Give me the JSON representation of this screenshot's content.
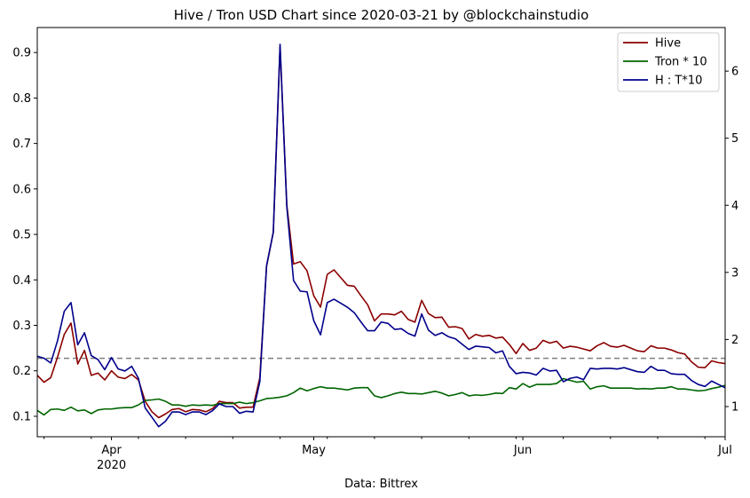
{
  "chart_data": {
    "type": "line",
    "title": "Hive / Tron USD Chart since 2020-03-21 by @blockchainstudio",
    "xlabel": "Data: Bittrex",
    "x_start": "2020-03-21",
    "x_end": "2020-07-01",
    "x_ticks": [
      {
        "date": "2020-04-01",
        "label": "Apr",
        "sublabel": "2020"
      },
      {
        "date": "2020-05-01",
        "label": "May",
        "sublabel": ""
      },
      {
        "date": "2020-06-01",
        "label": "Jun",
        "sublabel": ""
      },
      {
        "date": "2020-07-01",
        "label": "Jul",
        "sublabel": ""
      }
    ],
    "ylim_left": [
      0.055,
      0.955
    ],
    "yticks_left": [
      "0.1",
      "0.2",
      "0.3",
      "0.4",
      "0.5",
      "0.6",
      "0.7",
      "0.8",
      "0.9"
    ],
    "ylim_right": [
      0.55,
      6.65
    ],
    "yticks_right": [
      "1",
      "2",
      "3",
      "4",
      "5",
      "6"
    ],
    "reference_line": {
      "axis": "right",
      "value": 1.72,
      "style": "dashed",
      "color": "#808080"
    },
    "legend_position": "top-right",
    "series": [
      {
        "name": "Hive",
        "color": "#8b0000",
        "axis": "left",
        "values": [
          0.19,
          0.175,
          0.185,
          0.23,
          0.28,
          0.305,
          0.215,
          0.245,
          0.19,
          0.195,
          0.18,
          0.2,
          0.186,
          0.183,
          0.192,
          0.18,
          0.133,
          0.11,
          0.097,
          0.105,
          0.115,
          0.117,
          0.11,
          0.115,
          0.114,
          0.11,
          0.117,
          0.133,
          0.13,
          0.13,
          0.118,
          0.12,
          0.12,
          0.185,
          0.43,
          0.505,
          0.913,
          0.565,
          0.435,
          0.44,
          0.42,
          0.365,
          0.34,
          0.412,
          0.422,
          0.405,
          0.388,
          0.386,
          0.365,
          0.345,
          0.31,
          0.325,
          0.325,
          0.323,
          0.331,
          0.313,
          0.307,
          0.355,
          0.326,
          0.317,
          0.318,
          0.296,
          0.297,
          0.293,
          0.27,
          0.28,
          0.276,
          0.278,
          0.272,
          0.274,
          0.258,
          0.238,
          0.26,
          0.245,
          0.25,
          0.267,
          0.261,
          0.265,
          0.25,
          0.254,
          0.252,
          0.248,
          0.244,
          0.255,
          0.262,
          0.254,
          0.252,
          0.256,
          0.25,
          0.244,
          0.242,
          0.255,
          0.25,
          0.25,
          0.246,
          0.24,
          0.237,
          0.22,
          0.208,
          0.207,
          0.222,
          0.218,
          0.216
        ]
      },
      {
        "name": "Tron * 10",
        "color": "#006400",
        "axis": "left",
        "values": [
          0.113,
          0.103,
          0.115,
          0.116,
          0.113,
          0.12,
          0.112,
          0.114,
          0.106,
          0.114,
          0.116,
          0.116,
          0.118,
          0.119,
          0.119,
          0.125,
          0.135,
          0.136,
          0.138,
          0.133,
          0.125,
          0.125,
          0.122,
          0.125,
          0.124,
          0.125,
          0.124,
          0.128,
          0.128,
          0.128,
          0.131,
          0.128,
          0.13,
          0.134,
          0.139,
          0.14,
          0.142,
          0.145,
          0.152,
          0.162,
          0.156,
          0.161,
          0.165,
          0.162,
          0.162,
          0.16,
          0.158,
          0.162,
          0.163,
          0.163,
          0.145,
          0.141,
          0.145,
          0.15,
          0.153,
          0.15,
          0.15,
          0.149,
          0.152,
          0.155,
          0.151,
          0.145,
          0.148,
          0.152,
          0.145,
          0.147,
          0.146,
          0.148,
          0.151,
          0.15,
          0.163,
          0.16,
          0.172,
          0.164,
          0.17,
          0.17,
          0.17,
          0.172,
          0.183,
          0.179,
          0.175,
          0.177,
          0.16,
          0.165,
          0.167,
          0.162,
          0.162,
          0.162,
          0.162,
          0.16,
          0.161,
          0.16,
          0.162,
          0.162,
          0.165,
          0.16,
          0.16,
          0.158,
          0.156,
          0.157,
          0.161,
          0.164,
          0.168
        ]
      },
      {
        "name": "H : T*10",
        "color": "#00008b",
        "axis": "right",
        "values": [
          1.75,
          1.72,
          1.65,
          1.98,
          2.42,
          2.55,
          1.92,
          2.1,
          1.76,
          1.7,
          1.55,
          1.73,
          1.56,
          1.53,
          1.6,
          1.42,
          0.98,
          0.84,
          0.7,
          0.78,
          0.92,
          0.92,
          0.88,
          0.92,
          0.92,
          0.88,
          0.94,
          1.04,
          1.0,
          1.0,
          0.9,
          0.93,
          0.92,
          1.37,
          3.1,
          3.6,
          6.4,
          3.98,
          2.88,
          2.72,
          2.71,
          2.28,
          2.07,
          2.55,
          2.6,
          2.54,
          2.48,
          2.4,
          2.26,
          2.13,
          2.13,
          2.26,
          2.24,
          2.15,
          2.16,
          2.09,
          2.05,
          2.38,
          2.14,
          2.06,
          2.1,
          2.04,
          2.01,
          1.93,
          1.85,
          1.9,
          1.89,
          1.88,
          1.8,
          1.83,
          1.6,
          1.49,
          1.51,
          1.5,
          1.47,
          1.57,
          1.53,
          1.54,
          1.37,
          1.42,
          1.44,
          1.4,
          1.57,
          1.56,
          1.57,
          1.57,
          1.56,
          1.58,
          1.55,
          1.52,
          1.51,
          1.6,
          1.54,
          1.54,
          1.49,
          1.48,
          1.48,
          1.39,
          1.33,
          1.3,
          1.38,
          1.33,
          1.28
        ]
      }
    ]
  }
}
